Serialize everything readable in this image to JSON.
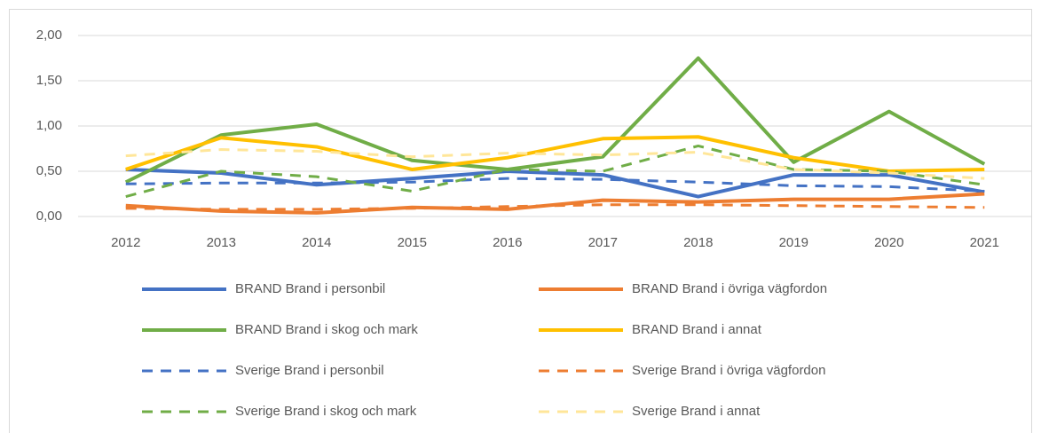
{
  "chart_data": {
    "type": "line",
    "categories": [
      "2012",
      "2013",
      "2014",
      "2015",
      "2016",
      "2017",
      "2018",
      "2019",
      "2020",
      "2021"
    ],
    "ylim": [
      0,
      2
    ],
    "yticks": [
      {
        "value": 0,
        "label": "0,00"
      },
      {
        "value": 0.5,
        "label": "0,50"
      },
      {
        "value": 1,
        "label": "1,00"
      },
      {
        "value": 1.5,
        "label": "1,50"
      },
      {
        "value": 2,
        "label": "2,00"
      }
    ],
    "grid": true,
    "legend": "bottom",
    "series": [
      {
        "name": "BRAND Brand i personbil",
        "color": "#4472c4",
        "style": "solid",
        "values": [
          0.52,
          0.48,
          0.35,
          0.42,
          0.5,
          0.46,
          0.22,
          0.46,
          0.46,
          0.27
        ]
      },
      {
        "name": "BRAND Brand i övriga vägfordon",
        "color": "#ed7d31",
        "style": "solid",
        "values": [
          0.12,
          0.06,
          0.04,
          0.1,
          0.08,
          0.18,
          0.16,
          0.19,
          0.19,
          0.25
        ]
      },
      {
        "name": "BRAND Brand i skog och mark",
        "color": "#70ad47",
        "style": "solid",
        "values": [
          0.38,
          0.9,
          1.02,
          0.62,
          0.52,
          0.66,
          1.75,
          0.6,
          1.16,
          0.58
        ]
      },
      {
        "name": "BRAND Brand i annat",
        "color": "#ffc000",
        "style": "solid",
        "values": [
          0.52,
          0.87,
          0.77,
          0.52,
          0.65,
          0.86,
          0.88,
          0.65,
          0.5,
          0.52
        ]
      },
      {
        "name": "Sverige Brand i personbil",
        "color": "#4472c4",
        "style": "dashed",
        "values": [
          0.36,
          0.37,
          0.37,
          0.38,
          0.42,
          0.41,
          0.38,
          0.34,
          0.33,
          0.28
        ]
      },
      {
        "name": "Sverige Brand i övriga vägfordon",
        "color": "#ed7d31",
        "style": "dashed",
        "values": [
          0.09,
          0.08,
          0.08,
          0.09,
          0.11,
          0.13,
          0.13,
          0.12,
          0.11,
          0.1
        ]
      },
      {
        "name": "Sverige Brand i skog och mark",
        "color": "#70ad47",
        "style": "dashed",
        "values": [
          0.22,
          0.5,
          0.44,
          0.28,
          0.52,
          0.5,
          0.78,
          0.52,
          0.5,
          0.35
        ]
      },
      {
        "name": "Sverige Brand i annat",
        "color": "#ffe699",
        "style": "dashed",
        "values": [
          0.67,
          0.74,
          0.72,
          0.66,
          0.7,
          0.68,
          0.71,
          0.52,
          0.48,
          0.42
        ]
      }
    ]
  }
}
